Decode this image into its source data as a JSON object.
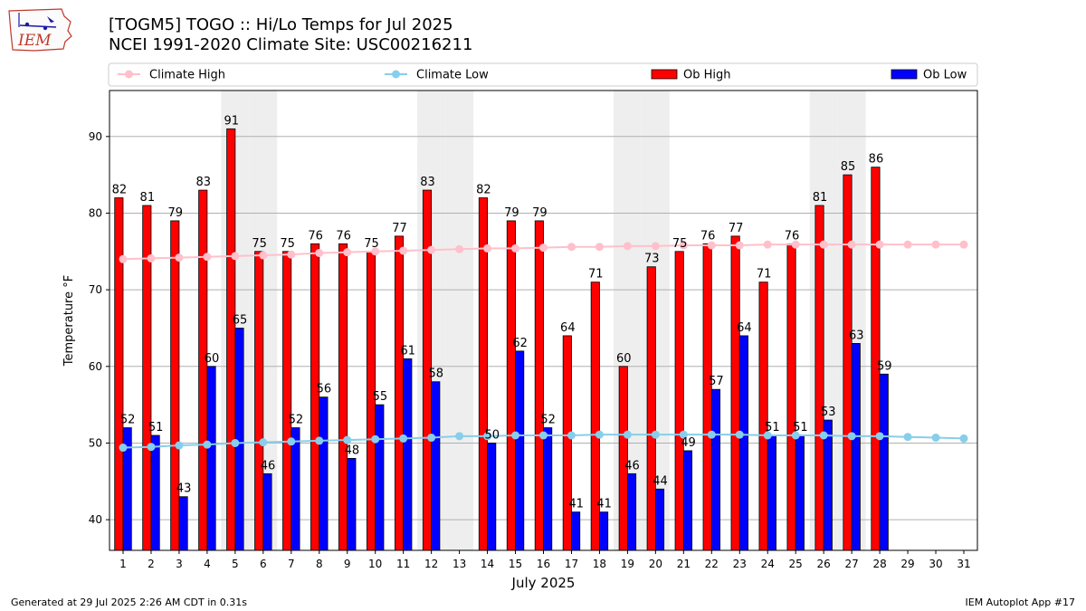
{
  "header": {
    "title_line1": "[TOGM5] TOGO :: Hi/Lo Temps for Jul 2025",
    "title_line2": "NCEI 1991-2020 Climate Site: USC00216211",
    "logo_text": "IEM"
  },
  "footer": {
    "left": "Generated at 29 Jul 2025 2:26 AM CDT in 0.31s",
    "right": "IEM Autoplot App #17"
  },
  "colors": {
    "ob_high": "#ff0000",
    "ob_low": "#0000ff",
    "climate_high": "#ffc0cb",
    "climate_low": "#87ceeb",
    "weekend_band": "#eeeeee",
    "grid": "#b0b0b0"
  },
  "chart_data": {
    "type": "bar",
    "xlabel": "July 2025",
    "ylabel": "Temperature °F",
    "ylim": [
      36,
      96
    ],
    "yticks": [
      40,
      50,
      60,
      70,
      80,
      90
    ],
    "grid": "horizontal",
    "legend_position": "top",
    "weekend_days": [
      5,
      6,
      12,
      13,
      19,
      20,
      26,
      27
    ],
    "categories": [
      "1",
      "2",
      "3",
      "4",
      "5",
      "6",
      "7",
      "8",
      "9",
      "10",
      "11",
      "12",
      "13",
      "14",
      "15",
      "16",
      "17",
      "18",
      "19",
      "20",
      "21",
      "22",
      "23",
      "24",
      "25",
      "26",
      "27",
      "28",
      "29",
      "30",
      "31"
    ],
    "series": [
      {
        "name": "Climate High",
        "kind": "line",
        "values": [
          74.0,
          74.1,
          74.2,
          74.3,
          74.4,
          74.5,
          74.6,
          74.8,
          74.9,
          75.0,
          75.1,
          75.2,
          75.3,
          75.4,
          75.4,
          75.5,
          75.6,
          75.6,
          75.7,
          75.7,
          75.8,
          75.8,
          75.8,
          75.9,
          75.9,
          75.9,
          75.9,
          75.9,
          75.9,
          75.9,
          75.9
        ]
      },
      {
        "name": "Climate Low",
        "kind": "line",
        "values": [
          49.4,
          49.5,
          49.7,
          49.8,
          50.0,
          50.1,
          50.2,
          50.3,
          50.4,
          50.5,
          50.6,
          50.7,
          50.9,
          50.9,
          51.0,
          51.0,
          51.0,
          51.1,
          51.1,
          51.1,
          51.1,
          51.1,
          51.1,
          51.0,
          51.0,
          51.0,
          50.9,
          50.9,
          50.8,
          50.7,
          50.6
        ]
      },
      {
        "name": "Ob High",
        "kind": "bar",
        "values": [
          82,
          81,
          79,
          83,
          91,
          75,
          75,
          76,
          76,
          75,
          77,
          83,
          null,
          82,
          79,
          79,
          64,
          71,
          60,
          73,
          75,
          76,
          77,
          71,
          76,
          81,
          85,
          86,
          null,
          null,
          null
        ]
      },
      {
        "name": "Ob Low",
        "kind": "bar",
        "values": [
          52,
          51,
          43,
          60,
          65,
          46,
          52,
          56,
          48,
          55,
          61,
          58,
          null,
          50,
          62,
          52,
          41,
          41,
          46,
          44,
          49,
          57,
          64,
          51,
          51,
          53,
          63,
          59,
          null,
          null,
          null
        ]
      }
    ]
  }
}
